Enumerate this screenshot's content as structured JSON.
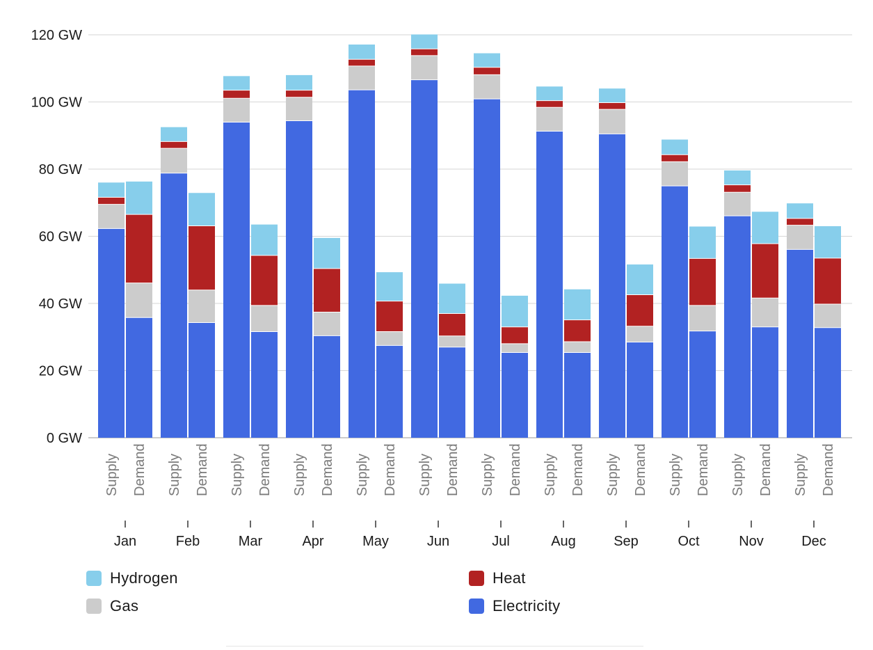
{
  "chart_data": {
    "type": "bar",
    "stacked": true,
    "categories": [
      "Jan",
      "Feb",
      "Mar",
      "Apr",
      "May",
      "Jun",
      "Jul",
      "Aug",
      "Sep",
      "Oct",
      "Nov",
      "Dec"
    ],
    "subcategories": [
      "Supply",
      "Demand"
    ],
    "y_unit": "GW",
    "ylim": [
      0,
      120
    ],
    "yticks": [
      0,
      20,
      40,
      60,
      80,
      100,
      120
    ],
    "ytick_labels": [
      "0 GW",
      "20 GW",
      "40 GW",
      "60 GW",
      "80 GW",
      "100 GW",
      "120 GW"
    ],
    "grid": true,
    "legend_position": "bottom",
    "series": [
      {
        "name": "Electricity",
        "color": "#4169e1",
        "supply": [
          62.3,
          78.8,
          94.0,
          94.4,
          103.6,
          106.6,
          100.9,
          91.3,
          90.5,
          75.0,
          66.1,
          56.1
        ],
        "demand": [
          35.8,
          34.3,
          31.6,
          30.4,
          27.5,
          27.0,
          25.4,
          25.4,
          28.5,
          31.8,
          33.0,
          32.8
        ]
      },
      {
        "name": "Gas",
        "color": "#cccccc",
        "supply": [
          7.2,
          7.4,
          7.1,
          7.0,
          7.1,
          7.2,
          7.2,
          7.1,
          7.3,
          7.2,
          7.0,
          7.2
        ],
        "demand": [
          10.3,
          9.7,
          7.8,
          7.0,
          4.1,
          3.3,
          2.6,
          3.2,
          4.7,
          7.6,
          8.6,
          7.0
        ]
      },
      {
        "name": "Heat",
        "color": "#b22222",
        "supply": [
          2.1,
          2.0,
          2.4,
          2.1,
          2.0,
          2.0,
          2.2,
          2.0,
          2.0,
          2.1,
          2.2,
          2.0
        ],
        "demand": [
          20.4,
          19.1,
          14.9,
          13.0,
          9.1,
          6.7,
          5.0,
          6.5,
          9.4,
          14.0,
          16.2,
          13.7
        ]
      },
      {
        "name": "Hydrogen",
        "color": "#87ceeb",
        "supply": [
          4.4,
          4.3,
          4.2,
          4.5,
          4.4,
          4.3,
          4.2,
          4.2,
          4.2,
          4.5,
          4.3,
          4.5
        ],
        "demand": [
          9.8,
          9.8,
          9.2,
          9.1,
          8.6,
          8.9,
          9.3,
          9.1,
          9.0,
          9.5,
          9.5,
          9.5
        ]
      }
    ],
    "legend": [
      {
        "name": "Hydrogen",
        "color": "#87ceeb"
      },
      {
        "name": "Heat",
        "color": "#b22222"
      },
      {
        "name": "Gas",
        "color": "#cccccc"
      },
      {
        "name": "Electricity",
        "color": "#4169e1"
      }
    ]
  }
}
